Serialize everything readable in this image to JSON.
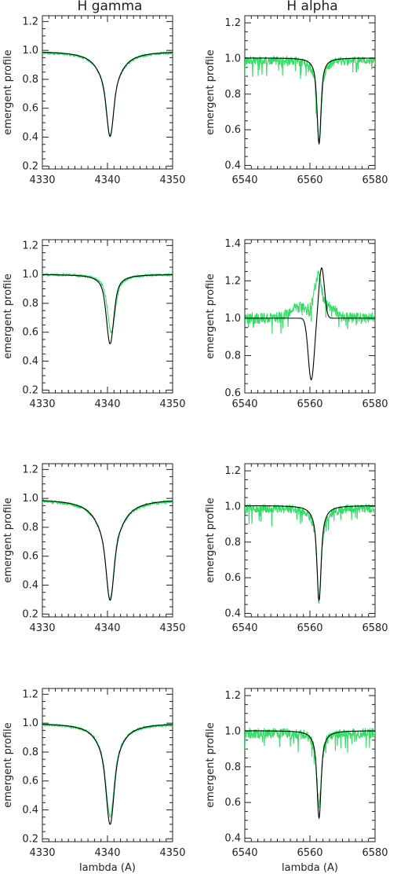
{
  "column_titles": [
    "H gamma",
    "H alpha"
  ],
  "colors": {
    "model": "#000000",
    "observed": "#33dd66",
    "axes": "#222222"
  },
  "chart_data": [
    {
      "type": "line",
      "ylabel": "emergent profile",
      "xlabel": "",
      "xlim": [
        4330,
        4350
      ],
      "ylim": [
        0.18,
        1.24
      ],
      "xticks": [
        4330,
        4340,
        4350
      ],
      "yticks": [
        0.2,
        0.4,
        0.6,
        0.8,
        1.0,
        1.2
      ],
      "series": [
        {
          "kind": "model",
          "center": 4340.4,
          "cont": 0.995,
          "depth": 0.59,
          "gw": 0.45,
          "lw": 1.6,
          "noise": 0
        },
        {
          "kind": "observed",
          "center": 4340.4,
          "cont": 0.99,
          "depth": 0.58,
          "gw": 0.5,
          "lw": 1.6,
          "noise": 0.008,
          "bump": 0.02
        }
      ]
    },
    {
      "type": "line",
      "ylabel": "emergent profile",
      "xlabel": "",
      "xlim": [
        6540,
        6580
      ],
      "ylim": [
        0.38,
        1.24
      ],
      "xticks": [
        6540,
        6560,
        6580
      ],
      "yticks": [
        0.4,
        0.6,
        0.8,
        1.0,
        1.2
      ],
      "series": [
        {
          "kind": "model",
          "center": 6562.8,
          "cont": 1.003,
          "depth": 0.48,
          "gw": 0.5,
          "lw": 1.0,
          "noise": 0
        },
        {
          "kind": "observed",
          "center": 6562.8,
          "cont": 0.99,
          "depth": 0.45,
          "gw": 0.6,
          "lw": 1.2,
          "noise": 0.025,
          "bump": 0
        }
      ]
    },
    {
      "type": "line",
      "ylabel": "emergent profile",
      "xlabel": "",
      "xlim": [
        4330,
        4350
      ],
      "ylim": [
        0.18,
        1.24
      ],
      "xticks": [
        4330,
        4340,
        4350
      ],
      "yticks": [
        0.2,
        0.4,
        0.6,
        0.8,
        1.0,
        1.2
      ],
      "series": [
        {
          "kind": "model",
          "center": 4340.4,
          "cont": 1.0,
          "depth": 0.48,
          "gw": 0.5,
          "lw": 0.9,
          "noise": 0
        },
        {
          "kind": "observed",
          "center": 4340.6,
          "cont": 1.0,
          "depth": 0.4,
          "gw": 0.5,
          "lw": 1.0,
          "noise": 0.008,
          "bump": 0
        }
      ]
    },
    {
      "type": "line",
      "ylabel": "emergent profile",
      "xlabel": "",
      "xlim": [
        6540,
        6580
      ],
      "ylim": [
        0.6,
        1.42
      ],
      "xticks": [
        6540,
        6560,
        6580
      ],
      "yticks": [
        0.6,
        0.8,
        1.0,
        1.2,
        1.4
      ],
      "series": [
        {
          "kind": "pcygni",
          "center": 6562.0,
          "cont": 1.0
        },
        {
          "kind": "observed_emission",
          "center": 6562.5,
          "cont": 1.0,
          "noise": 0.03
        }
      ]
    },
    {
      "type": "line",
      "ylabel": "emergent profile",
      "xlabel": "",
      "xlim": [
        4330,
        4350
      ],
      "ylim": [
        0.18,
        1.24
      ],
      "xticks": [
        4330,
        4340,
        4350
      ],
      "yticks": [
        0.2,
        0.4,
        0.6,
        0.8,
        1.0,
        1.2
      ],
      "series": [
        {
          "kind": "model",
          "center": 4340.4,
          "cont": 0.995,
          "depth": 0.7,
          "gw": 0.5,
          "lw": 1.8,
          "noise": 0
        },
        {
          "kind": "observed",
          "center": 4340.4,
          "cont": 0.99,
          "depth": 0.69,
          "gw": 0.5,
          "lw": 1.8,
          "noise": 0.01,
          "bump": 0.02
        }
      ]
    },
    {
      "type": "line",
      "ylabel": "emergent profile",
      "xlabel": "",
      "xlim": [
        6540,
        6580
      ],
      "ylim": [
        0.38,
        1.24
      ],
      "xticks": [
        6540,
        6560,
        6580
      ],
      "yticks": [
        0.4,
        0.6,
        0.8,
        1.0,
        1.2
      ],
      "series": [
        {
          "kind": "model",
          "center": 6562.8,
          "cont": 1.005,
          "depth": 0.53,
          "gw": 0.5,
          "lw": 1.2,
          "noise": 0
        },
        {
          "kind": "observed",
          "center": 6562.8,
          "cont": 0.99,
          "depth": 0.52,
          "gw": 0.5,
          "lw": 1.3,
          "noise": 0.025,
          "bump": 0
        }
      ]
    },
    {
      "type": "line",
      "ylabel": "emergent profile",
      "xlabel": "lambda (A)",
      "xlim": [
        4330,
        4350
      ],
      "ylim": [
        0.18,
        1.24
      ],
      "xticks": [
        4330,
        4340,
        4350
      ],
      "yticks": [
        0.2,
        0.4,
        0.6,
        0.8,
        1.0,
        1.2
      ],
      "series": [
        {
          "kind": "model",
          "center": 4340.4,
          "cont": 1.0,
          "depth": 0.7,
          "gw": 0.5,
          "lw": 1.5,
          "noise": 0
        },
        {
          "kind": "observed",
          "center": 4340.4,
          "cont": 0.995,
          "depth": 0.64,
          "gw": 0.5,
          "lw": 1.5,
          "noise": 0.008,
          "bump": 0
        }
      ]
    },
    {
      "type": "line",
      "ylabel": "emergent profile",
      "xlabel": "lambda (A)",
      "xlim": [
        6540,
        6580
      ],
      "ylim": [
        0.38,
        1.24
      ],
      "xticks": [
        6540,
        6560,
        6580
      ],
      "yticks": [
        0.4,
        0.6,
        0.8,
        1.0,
        1.2
      ],
      "series": [
        {
          "kind": "model",
          "center": 6562.8,
          "cont": 1.003,
          "depth": 0.49,
          "gw": 0.5,
          "lw": 1.1,
          "noise": 0
        },
        {
          "kind": "observed",
          "center": 6562.8,
          "cont": 0.99,
          "depth": 0.4,
          "gw": 0.6,
          "lw": 1.2,
          "noise": 0.03,
          "bump": 0
        }
      ]
    }
  ]
}
